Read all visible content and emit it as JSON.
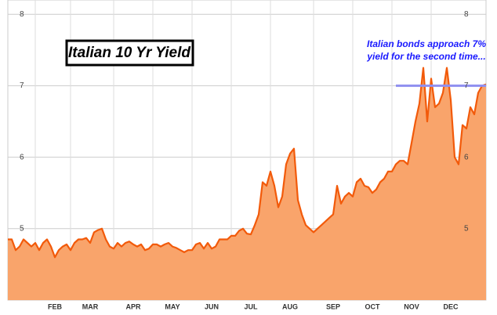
{
  "chart_data": {
    "type": "area",
    "title": "Italian 10 Yr Yield",
    "annotation": [
      "Italian bonds approach 7%",
      "yield for the second time..."
    ],
    "reference_line": 7,
    "reference_color": "#8f8ff0",
    "color": "#f25a0a",
    "fill": "#f9a46b",
    "grid": true,
    "ylim": [
      4,
      8.2
    ],
    "yticks": [
      5,
      6,
      7,
      8
    ],
    "categories": [
      null,
      null,
      null,
      null,
      null,
      null,
      null,
      null,
      null,
      null,
      null,
      null,
      "FEB",
      null,
      null,
      null,
      null,
      null,
      null,
      null,
      null,
      "MAR",
      null,
      null,
      null,
      null,
      null,
      null,
      null,
      null,
      null,
      null,
      "APR",
      null,
      null,
      null,
      null,
      null,
      null,
      null,
      null,
      null,
      "MAY",
      null,
      null,
      null,
      null,
      null,
      null,
      null,
      null,
      null,
      "JUN",
      null,
      null,
      null,
      null,
      null,
      null,
      null,
      null,
      null,
      "JUL",
      null,
      null,
      null,
      null,
      null,
      null,
      null,
      null,
      null,
      "AUG",
      null,
      null,
      null,
      null,
      null,
      null,
      null,
      null,
      null,
      null,
      "SEP",
      null,
      null,
      null,
      null,
      null,
      null,
      null,
      null,
      null,
      "OCT",
      null,
      null,
      null,
      null,
      null,
      null,
      null,
      null,
      null,
      "NOV",
      null,
      null,
      null,
      null,
      null,
      null,
      null,
      null,
      null,
      "DEC",
      null,
      null,
      null,
      null,
      null,
      null,
      null,
      null,
      null
    ],
    "values": [
      4.85,
      4.85,
      4.7,
      4.75,
      4.85,
      4.8,
      4.75,
      4.8,
      4.7,
      4.8,
      4.85,
      4.75,
      4.6,
      4.7,
      4.75,
      4.78,
      4.7,
      4.8,
      4.85,
      4.85,
      4.87,
      4.8,
      4.95,
      4.98,
      5.0,
      4.85,
      4.75,
      4.72,
      4.8,
      4.75,
      4.8,
      4.82,
      4.78,
      4.75,
      4.78,
      4.7,
      4.72,
      4.78,
      4.78,
      4.75,
      4.78,
      4.8,
      4.75,
      4.73,
      4.7,
      4.67,
      4.7,
      4.7,
      4.78,
      4.8,
      4.72,
      4.8,
      4.72,
      4.75,
      4.85,
      4.85,
      4.85,
      4.9,
      4.9,
      4.97,
      5.0,
      4.93,
      4.92,
      5.05,
      5.2,
      5.65,
      5.6,
      5.8,
      5.6,
      5.3,
      5.45,
      5.9,
      6.05,
      6.12,
      5.4,
      5.2,
      5.05,
      5.0,
      4.95,
      5.0,
      5.05,
      5.1,
      5.15,
      5.2,
      5.6,
      5.35,
      5.45,
      5.5,
      5.45,
      5.65,
      5.7,
      5.6,
      5.58,
      5.5,
      5.55,
      5.65,
      5.7,
      5.8,
      5.8,
      5.9,
      5.95,
      5.95,
      5.9,
      6.2,
      6.5,
      6.75,
      7.25,
      6.5,
      7.1,
      6.7,
      6.75,
      6.9,
      7.25,
      6.8,
      6.0,
      5.9,
      6.45,
      6.4,
      6.7,
      6.6,
      6.9,
      7.0,
      7.02
    ]
  }
}
